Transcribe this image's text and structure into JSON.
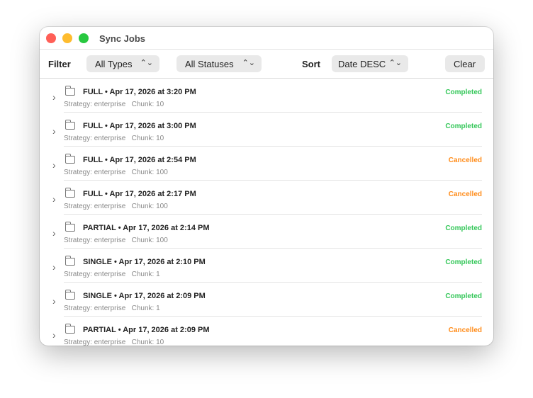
{
  "window": {
    "title": "Sync Jobs"
  },
  "toolbar": {
    "filter_label": "Filter",
    "type_select": "All Types",
    "status_select": "All Statuses",
    "sort_label": "Sort",
    "sort_select": "Date DESC",
    "clear_label": "Clear"
  },
  "colors": {
    "completed": "#34c759",
    "cancelled": "#ff8c1a"
  },
  "jobs": [
    {
      "title": "FULL • Apr 17, 2026 at 3:20 PM",
      "strategy": "Strategy: enterprise",
      "chunk": "Chunk: 10",
      "status": "Completed"
    },
    {
      "title": "FULL • Apr 17, 2026 at 3:00 PM",
      "strategy": "Strategy: enterprise",
      "chunk": "Chunk: 10",
      "status": "Completed"
    },
    {
      "title": "FULL • Apr 17, 2026 at 2:54 PM",
      "strategy": "Strategy: enterprise",
      "chunk": "Chunk: 100",
      "status": "Cancelled"
    },
    {
      "title": "FULL • Apr 17, 2026 at 2:17 PM",
      "strategy": "Strategy: enterprise",
      "chunk": "Chunk: 100",
      "status": "Cancelled"
    },
    {
      "title": "PARTIAL • Apr 17, 2026 at 2:14 PM",
      "strategy": "Strategy: enterprise",
      "chunk": "Chunk: 100",
      "status": "Completed"
    },
    {
      "title": "SINGLE • Apr 17, 2026 at 2:10 PM",
      "strategy": "Strategy: enterprise",
      "chunk": "Chunk: 1",
      "status": "Completed"
    },
    {
      "title": "SINGLE • Apr 17, 2026 at 2:09 PM",
      "strategy": "Strategy: enterprise",
      "chunk": "Chunk: 1",
      "status": "Completed"
    },
    {
      "title": "PARTIAL • Apr 17, 2026 at 2:09 PM",
      "strategy": "Strategy: enterprise",
      "chunk": "Chunk: 10",
      "status": "Cancelled"
    }
  ]
}
